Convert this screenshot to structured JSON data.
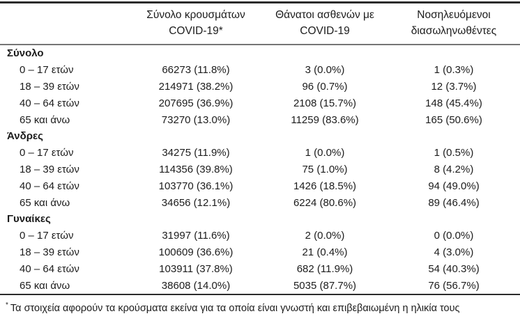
{
  "table": {
    "headers": [
      {
        "line1": "Σύνολο κρουσμάτων",
        "line2": "COVID-19*"
      },
      {
        "line1": "Θάνατοι ασθενών με",
        "line2": "COVID-19"
      },
      {
        "line1": "Νοσηλευόμενοι",
        "line2": "διασωληνωθέντες"
      }
    ],
    "sections": [
      {
        "label": "Σύνολο",
        "rows": [
          {
            "label": "0 – 17 ετών",
            "cases": "66273 (11.8%)",
            "deaths": "3 (0.0%)",
            "intubated": "1 (0.3%)"
          },
          {
            "label": "18 – 39 ετών",
            "cases": "214971 (38.2%)",
            "deaths": "96 (0.7%)",
            "intubated": "12 (3.7%)"
          },
          {
            "label": "40 – 64 ετών",
            "cases": "207695 (36.9%)",
            "deaths": "2108 (15.7%)",
            "intubated": "148 (45.4%)"
          },
          {
            "label": "65 και άνω",
            "cases": "73270 (13.0%)",
            "deaths": "11259 (83.6%)",
            "intubated": "165 (50.6%)"
          }
        ]
      },
      {
        "label": "Άνδρες",
        "rows": [
          {
            "label": "0 – 17 ετών",
            "cases": "34275 (11.9%)",
            "deaths": "1 (0.0%)",
            "intubated": "1 (0.5%)"
          },
          {
            "label": "18 – 39 ετών",
            "cases": "114356 (39.8%)",
            "deaths": "75 (1.0%)",
            "intubated": "8 (4.2%)"
          },
          {
            "label": "40 – 64 ετών",
            "cases": "103770 (36.1%)",
            "deaths": "1426 (18.5%)",
            "intubated": "94 (49.0%)"
          },
          {
            "label": "65 και άνω",
            "cases": "34656 (12.1%)",
            "deaths": "6224 (80.6%)",
            "intubated": "89 (46.4%)"
          }
        ]
      },
      {
        "label": "Γυναίκες",
        "rows": [
          {
            "label": "0 – 17 ετών",
            "cases": "31997 (11.6%)",
            "deaths": "2 (0.0%)",
            "intubated": "0 (0.0%)"
          },
          {
            "label": "18 – 39 ετών",
            "cases": "100609 (36.6%)",
            "deaths": "21 (0.4%)",
            "intubated": "4 (3.0%)"
          },
          {
            "label": "40 – 64 ετών",
            "cases": "103911 (37.8%)",
            "deaths": "682 (11.9%)",
            "intubated": "54 (40.3%)"
          },
          {
            "label": "65 και άνω",
            "cases": "38608 (14.0%)",
            "deaths": "5035 (87.7%)",
            "intubated": "76 (56.7%)"
          }
        ]
      }
    ],
    "footnote": {
      "marker": "*",
      "text": "Τα στοιχεία αφορούν τα κρούσματα εκείνα για τα οποία είναι γνωστή και επιβεβαιωμένη η ηλικία τους"
    }
  }
}
